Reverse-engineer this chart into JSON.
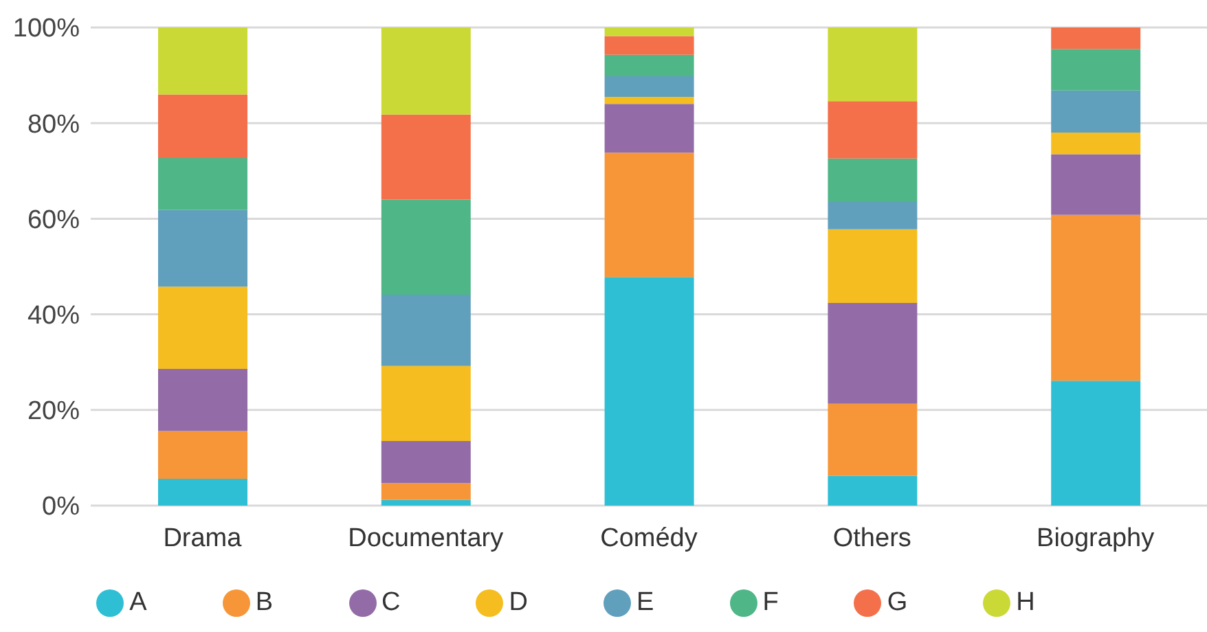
{
  "chart_data": {
    "type": "bar",
    "stacked": true,
    "categories": [
      "Drama",
      "Documentary",
      "Comédy",
      "Others",
      "Biography"
    ],
    "series": [
      {
        "name": "A",
        "color": "#2ebfd4",
        "values": [
          5.6,
          1.2,
          47.8,
          6.2,
          26.1
        ]
      },
      {
        "name": "B",
        "color": "#f79638",
        "values": [
          10.0,
          3.5,
          26.0,
          15.1,
          34.7
        ]
      },
      {
        "name": "C",
        "color": "#936ca7",
        "values": [
          13.0,
          8.8,
          10.2,
          21.1,
          12.7
        ]
      },
      {
        "name": "D",
        "color": "#f5bd1f",
        "values": [
          17.2,
          15.7,
          1.5,
          15.4,
          4.5
        ]
      },
      {
        "name": "E",
        "color": "#60a0bd",
        "values": [
          16.0,
          14.9,
          4.3,
          5.7,
          8.8
        ]
      },
      {
        "name": "F",
        "color": "#4fb688",
        "values": [
          10.9,
          19.9,
          4.5,
          9.1,
          8.7
        ]
      },
      {
        "name": "G",
        "color": "#f3704b",
        "values": [
          13.3,
          17.8,
          3.9,
          12.0,
          4.5
        ]
      },
      {
        "name": "H",
        "color": "#cbd936",
        "values": [
          14.0,
          18.2,
          1.8,
          15.4,
          0
        ]
      }
    ],
    "ylim": [
      0,
      100
    ],
    "yticks": [
      {
        "value": 0,
        "label": "0%"
      },
      {
        "value": 20,
        "label": "20%"
      },
      {
        "value": 40,
        "label": "40%"
      },
      {
        "value": 60,
        "label": "60%"
      },
      {
        "value": 80,
        "label": "80%"
      },
      {
        "value": 100,
        "label": "100%"
      }
    ],
    "grid": "y",
    "legend": "bottom"
  }
}
